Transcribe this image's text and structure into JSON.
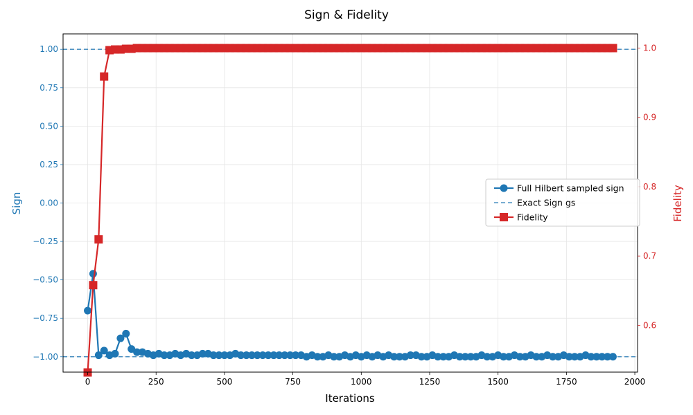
{
  "chart_data": {
    "type": "line",
    "title": "Sign & Fidelity",
    "xlabel": "Iterations",
    "ylabel_left": "Sign",
    "ylabel_right": "Fidelity",
    "xlim": [
      -90,
      2010
    ],
    "ylim_left": [
      -1.1,
      1.1
    ],
    "ylim_right": [
      0.5325,
      1.0205
    ],
    "x_ticks": [
      0,
      250,
      500,
      750,
      1000,
      1250,
      1500,
      1750,
      2000
    ],
    "x_tick_labels": [
      "0",
      "250",
      "500",
      "750",
      "1000",
      "1250",
      "1500",
      "1750",
      "2000"
    ],
    "y_left_ticks": [
      1.0,
      0.75,
      0.5,
      0.25,
      0.0,
      -0.25,
      -0.5,
      -0.75,
      -1.0
    ],
    "y_left_tick_labels": [
      "1.00",
      "0.75",
      "0.50",
      "0.25",
      "0.00",
      "−0.25",
      "−0.50",
      "−0.75",
      "−1.00"
    ],
    "y_right_ticks": [
      1.0,
      0.9,
      0.8,
      0.7,
      0.6
    ],
    "y_right_tick_labels": [
      "1.0",
      "0.9",
      "0.8",
      "0.7",
      "0.6"
    ],
    "grid": true,
    "legend_position": "center-right",
    "colors": {
      "sign": "#1f77b4",
      "fidelity": "#d62728",
      "exact": "#1f77b4"
    },
    "exact_sign_levels": [
      1.0,
      -1.0
    ],
    "series": [
      {
        "name": "Full Hilbert sampled sign",
        "axis": "left",
        "marker": "circle",
        "x": [
          0,
          20,
          40,
          60,
          80,
          100,
          120,
          140,
          160,
          180,
          200,
          220,
          240,
          260,
          280,
          300,
          320,
          340,
          360,
          380,
          400,
          420,
          440,
          460,
          480,
          500,
          520,
          540,
          560,
          580,
          600,
          620,
          640,
          660,
          680,
          700,
          720,
          740,
          760,
          780,
          800,
          820,
          840,
          860,
          880,
          900,
          920,
          940,
          960,
          980,
          1000,
          1020,
          1040,
          1060,
          1080,
          1100,
          1120,
          1140,
          1160,
          1180,
          1200,
          1220,
          1240,
          1260,
          1280,
          1300,
          1320,
          1340,
          1360,
          1380,
          1400,
          1420,
          1440,
          1460,
          1480,
          1500,
          1520,
          1540,
          1560,
          1580,
          1600,
          1620,
          1640,
          1660,
          1680,
          1700,
          1720,
          1740,
          1760,
          1780,
          1800,
          1820,
          1840,
          1860,
          1880,
          1900,
          1920
        ],
        "y": [
          -0.7,
          -0.46,
          -0.99,
          -0.96,
          -0.99,
          -0.98,
          -0.88,
          -0.85,
          -0.95,
          -0.97,
          -0.97,
          -0.98,
          -0.99,
          -0.98,
          -0.99,
          -0.99,
          -0.98,
          -0.99,
          -0.98,
          -0.99,
          -0.99,
          -0.98,
          -0.98,
          -0.99,
          -0.99,
          -0.99,
          -0.99,
          -0.98,
          -0.99,
          -0.99,
          -0.99,
          -0.99,
          -0.99,
          -0.99,
          -0.99,
          -0.99,
          -0.99,
          -0.99,
          -0.99,
          -0.99,
          -1.0,
          -0.99,
          -1.0,
          -1.0,
          -0.99,
          -1.0,
          -1.0,
          -0.99,
          -1.0,
          -0.99,
          -1.0,
          -0.99,
          -1.0,
          -0.99,
          -1.0,
          -0.99,
          -1.0,
          -1.0,
          -1.0,
          -0.99,
          -0.99,
          -1.0,
          -1.0,
          -0.99,
          -1.0,
          -1.0,
          -1.0,
          -0.99,
          -1.0,
          -1.0,
          -1.0,
          -1.0,
          -0.99,
          -1.0,
          -1.0,
          -0.99,
          -1.0,
          -1.0,
          -0.99,
          -1.0,
          -1.0,
          -0.99,
          -1.0,
          -1.0,
          -0.99,
          -1.0,
          -1.0,
          -0.99,
          -1.0,
          -1.0,
          -1.0,
          -0.99,
          -1.0,
          -1.0,
          -1.0,
          -1.0,
          -1.0
        ]
      },
      {
        "name": "Fidelity",
        "axis": "right",
        "marker": "square",
        "x": [
          0,
          20,
          40,
          60,
          80,
          100,
          120,
          140,
          160,
          180,
          200,
          220,
          240,
          260,
          280,
          300,
          320,
          340,
          360,
          380,
          400,
          420,
          440,
          460,
          480,
          500,
          520,
          540,
          560,
          580,
          600,
          620,
          640,
          660,
          680,
          700,
          720,
          740,
          760,
          780,
          800,
          820,
          840,
          860,
          880,
          900,
          920,
          940,
          960,
          980,
          1000,
          1020,
          1040,
          1060,
          1080,
          1100,
          1120,
          1140,
          1160,
          1180,
          1200,
          1220,
          1240,
          1260,
          1280,
          1300,
          1320,
          1340,
          1360,
          1380,
          1400,
          1420,
          1440,
          1460,
          1480,
          1500,
          1520,
          1540,
          1560,
          1580,
          1600,
          1620,
          1640,
          1660,
          1680,
          1700,
          1720,
          1740,
          1760,
          1780,
          1800,
          1820,
          1840,
          1860,
          1880,
          1900,
          1920
        ],
        "y": [
          0.532,
          0.658,
          0.724,
          0.959,
          0.997,
          0.998,
          0.998,
          0.999,
          0.999,
          1.0,
          1.0,
          1.0,
          1.0,
          1.0,
          1.0,
          1.0,
          1.0,
          1.0,
          1.0,
          1.0,
          1.0,
          1.0,
          1.0,
          1.0,
          1.0,
          1.0,
          1.0,
          1.0,
          1.0,
          1.0,
          1.0,
          1.0,
          1.0,
          1.0,
          1.0,
          1.0,
          1.0,
          1.0,
          1.0,
          1.0,
          1.0,
          1.0,
          1.0,
          1.0,
          1.0,
          1.0,
          1.0,
          1.0,
          1.0,
          1.0,
          1.0,
          1.0,
          1.0,
          1.0,
          1.0,
          1.0,
          1.0,
          1.0,
          1.0,
          1.0,
          1.0,
          1.0,
          1.0,
          1.0,
          1.0,
          1.0,
          1.0,
          1.0,
          1.0,
          1.0,
          1.0,
          1.0,
          1.0,
          1.0,
          1.0,
          1.0,
          1.0,
          1.0,
          1.0,
          1.0,
          1.0,
          1.0,
          1.0,
          1.0,
          1.0,
          1.0,
          1.0,
          1.0,
          1.0,
          1.0,
          1.0,
          1.0,
          1.0,
          1.0,
          1.0,
          1.0,
          1.0
        ]
      }
    ],
    "legend": [
      {
        "label": "Full Hilbert sampled sign",
        "style": "line-circle",
        "color": "#1f77b4"
      },
      {
        "label": "Exact Sign gs",
        "style": "dashed",
        "color": "#1f77b4"
      },
      {
        "label": "Fidelity",
        "style": "line-square",
        "color": "#d62728"
      }
    ]
  }
}
